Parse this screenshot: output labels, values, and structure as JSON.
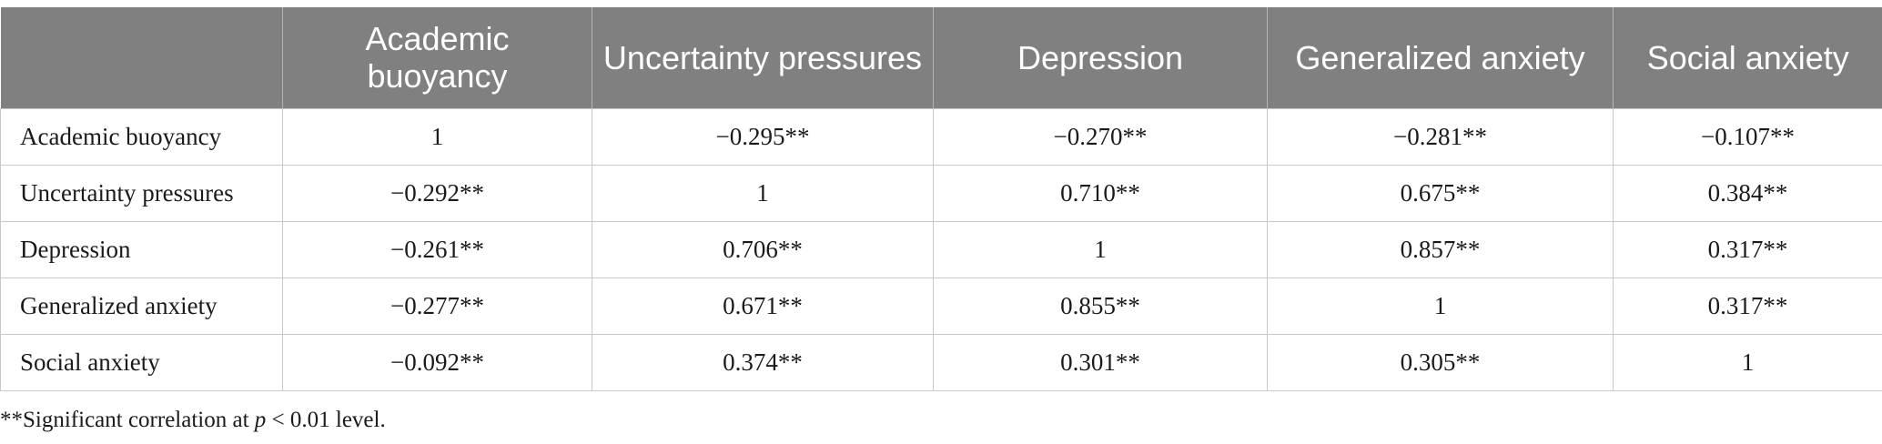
{
  "table": {
    "columns": [
      "",
      "Academic buoyancy",
      "Uncertainty pressures",
      "Depression",
      "Generalized anxiety",
      "Social anxiety"
    ],
    "rows": [
      {
        "label": "Academic buoyancy",
        "cells": [
          "1",
          "−0.295**",
          "−0.270**",
          "−0.281**",
          "−0.107**"
        ]
      },
      {
        "label": "Uncertainty pressures",
        "cells": [
          "−0.292**",
          "1",
          "0.710**",
          "0.675**",
          "0.384**"
        ]
      },
      {
        "label": "Depression",
        "cells": [
          "−0.261**",
          "0.706**",
          "1",
          "0.857**",
          "0.317**"
        ]
      },
      {
        "label": "Generalized anxiety",
        "cells": [
          "−0.277**",
          "0.671**",
          "0.855**",
          "1",
          "0.317**"
        ]
      },
      {
        "label": "Social anxiety",
        "cells": [
          "−0.092**",
          "0.374**",
          "0.301**",
          "0.305**",
          "1"
        ]
      }
    ]
  },
  "footnote": {
    "prefix": "**Significant correlation at ",
    "variable": "p",
    "suffix": " < 0.01 level."
  },
  "colors": {
    "header_bg": "#808080",
    "header_text": "#ffffff",
    "grid": "#c8c8c8"
  }
}
